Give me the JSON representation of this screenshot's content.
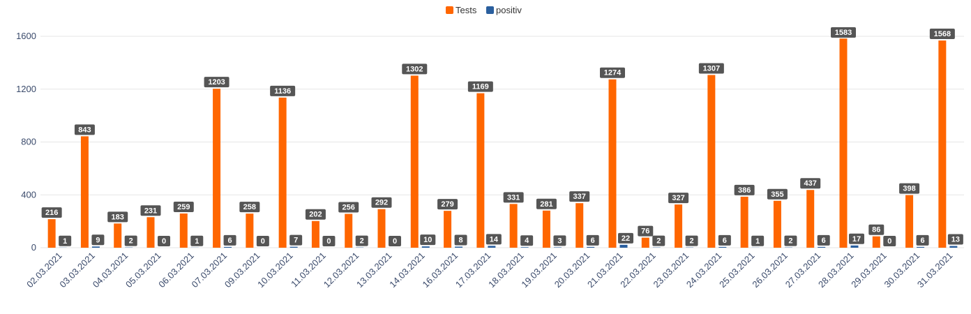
{
  "chart_data": {
    "type": "bar",
    "categories": [
      "02.03.2021",
      "03.03.2021",
      "04.03.2021",
      "05.03.2021",
      "06.03.2021",
      "07.03.2021",
      "09.03.2021",
      "10.03.2021",
      "11.03.2021",
      "12.03.2021",
      "13.03.2021",
      "14.03.2021",
      "16.03.2021",
      "17.03.2021",
      "18.03.2021",
      "19.03.2021",
      "20.03.2021",
      "21.03.2021",
      "22.03.2021",
      "23.03.2021",
      "24.03.2021",
      "25.03.2021",
      "26.03.2021",
      "27.03.2021",
      "28.03.2021",
      "29.03.2021",
      "30.03.2021",
      "31.03.2021"
    ],
    "series": [
      {
        "name": "Tests",
        "color": "#ff6600",
        "values": [
          216,
          843,
          183,
          231,
          259,
          1203,
          258,
          1136,
          202,
          256,
          292,
          1302,
          279,
          1169,
          331,
          281,
          337,
          1274,
          76,
          327,
          1307,
          386,
          355,
          437,
          1583,
          86,
          398,
          1568
        ]
      },
      {
        "name": "positiv",
        "color": "#2a5f9e",
        "values": [
          1,
          9,
          2,
          0,
          1,
          6,
          0,
          7,
          0,
          2,
          0,
          10,
          8,
          14,
          4,
          3,
          6,
          22,
          2,
          2,
          6,
          1,
          2,
          6,
          17,
          0,
          6,
          13
        ]
      }
    ],
    "yticks": [
      0,
      400,
      800,
      1200,
      1600
    ],
    "ylim": [
      0,
      1600
    ],
    "legend_position": "top-center",
    "grid": true,
    "label_bg_color": "#555555"
  }
}
